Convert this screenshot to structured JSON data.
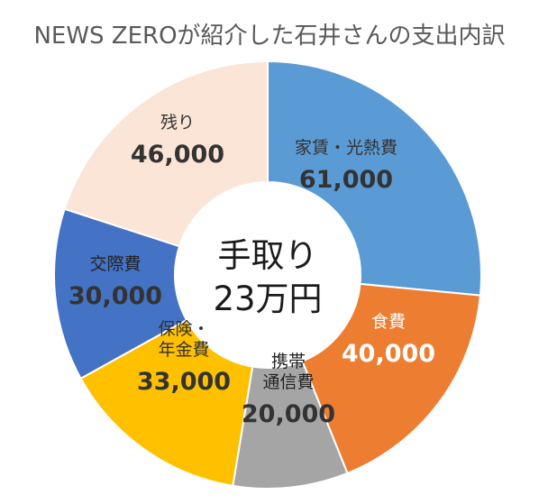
{
  "chart_data": {
    "type": "pie",
    "title": "NEWS ZEROが紹介した石井さんの支出内訳",
    "center_label": [
      "手取り",
      "23万円"
    ],
    "slices": [
      {
        "label": [
          "家賃・光熱費"
        ],
        "value": 61000,
        "value_text": "61,000",
        "color": "#5B9BD5",
        "text_color": "#333333",
        "value_color": "#333333"
      },
      {
        "label": [
          "食費"
        ],
        "value": 40000,
        "value_text": "40,000",
        "color": "#ED7D31",
        "text_color": "#ffffff",
        "value_color": "#ffffff"
      },
      {
        "label": [
          "携帯",
          "通信費"
        ],
        "value": 20000,
        "value_text": "20,000",
        "color": "#A5A5A5",
        "text_color": "#222222",
        "value_color": "#333333"
      },
      {
        "label": [
          "保険・",
          "年金費"
        ],
        "value": 33000,
        "value_text": "33,000",
        "color": "#FFC000",
        "text_color": "#333333",
        "value_color": "#333333"
      },
      {
        "label": [
          "交際費"
        ],
        "value": 30000,
        "value_text": "30,000",
        "color": "#4472C4",
        "text_color": "#222222",
        "value_color": "#333333"
      },
      {
        "label": [
          "残り"
        ],
        "value": 46000,
        "value_text": "46,000",
        "color": "#FBE5D6",
        "text_color": "#333333",
        "value_color": "#333333"
      }
    ]
  }
}
